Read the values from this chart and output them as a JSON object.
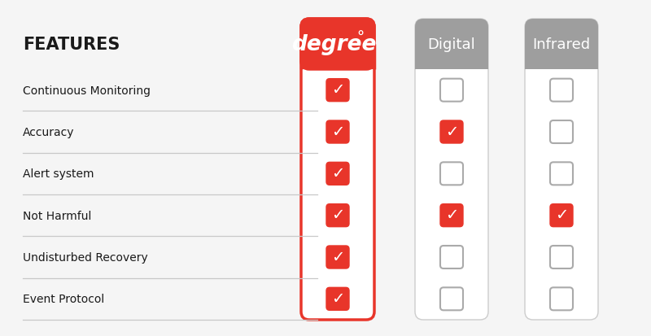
{
  "title_features": "FEATURES",
  "columns": [
    "degree",
    "Digital",
    "Infrared"
  ],
  "features": [
    "Continuous Monitoring",
    "Accuracy",
    "Alert system",
    "Not Harmful",
    "Undisturbed Recovery",
    "Event Protocol"
  ],
  "checks": {
    "degree": [
      true,
      true,
      true,
      true,
      true,
      true
    ],
    "Digital": [
      false,
      true,
      false,
      true,
      false,
      false
    ],
    "Infrared": [
      false,
      false,
      false,
      true,
      false,
      false
    ]
  },
  "degree_header_bg": "#E8352A",
  "gray_header_bg": "#9E9E9E",
  "degree_col_border": "#E8352A",
  "check_color": "#E8352A",
  "empty_box_border": "#AAAAAA",
  "background_color": "#F5F5F5",
  "features_title_color": "#1A1A1A",
  "features_text_color": "#1A1A1A",
  "separator_color": "#C8C8C8",
  "col_bg_white": "#FFFFFF",
  "col_bg_light": "#F8F8F8"
}
